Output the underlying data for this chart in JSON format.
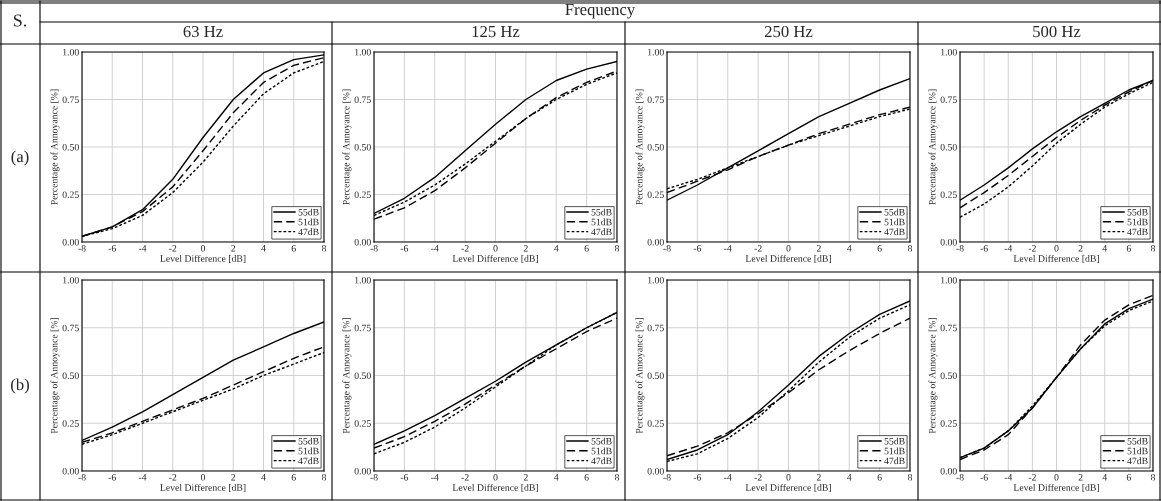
{
  "chart_data": [
    {
      "type": "line",
      "title": "63 Hz",
      "annotations": [
        "S.",
        "Frequency",
        "(a)"
      ],
      "xlabel": "Level Difference [dB]",
      "ylabel": "Percentage of Annoyance [%]",
      "x": [
        -8,
        -6,
        -4,
        -2,
        0,
        2,
        4,
        6,
        8
      ],
      "xlim": [
        -8,
        8
      ],
      "xticks": [
        -8,
        -6,
        -4,
        -2,
        0,
        2,
        4,
        6,
        8
      ],
      "ylim": [
        0,
        1
      ],
      "yticks": [
        {
          "value": 0,
          "label": "0.00"
        },
        {
          "value": 0.25,
          "label": "0.25"
        },
        {
          "value": 0.5,
          "label": "0.50"
        },
        {
          "value": 0.75,
          "label": "0.75"
        },
        {
          "value": 1,
          "label": "1.00"
        }
      ],
      "grid": true,
      "legend": "bottom right",
      "series": [
        {
          "name": "55dB",
          "color": "#000000",
          "line_style": "solid",
          "values": [
            0.03,
            0.08,
            0.17,
            0.33,
            0.55,
            0.75,
            0.89,
            0.96,
            0.985
          ]
        },
        {
          "name": "51dB",
          "color": "#000000",
          "line_style": "dashed",
          "values": [
            0.03,
            0.08,
            0.16,
            0.29,
            0.48,
            0.68,
            0.84,
            0.93,
            0.97
          ]
        },
        {
          "name": "47dB",
          "color": "#000000",
          "line_style": "dotted",
          "values": [
            0.03,
            0.07,
            0.14,
            0.26,
            0.42,
            0.61,
            0.78,
            0.89,
            0.95
          ]
        }
      ]
    },
    {
      "type": "line",
      "title": "125 Hz",
      "xlabel": "Level Difference [dB]",
      "ylabel": "Percentage of Annoyance [%]",
      "x": [
        -8,
        -6,
        -4,
        -2,
        0,
        2,
        4,
        6,
        8
      ],
      "xlim": [
        -8,
        8
      ],
      "xticks": [
        -8,
        -6,
        -4,
        -2,
        0,
        2,
        4,
        6,
        8
      ],
      "ylim": [
        0,
        1
      ],
      "yticks": [
        {
          "value": 0,
          "label": "0.00"
        },
        {
          "value": 0.25,
          "label": "0.25"
        },
        {
          "value": 0.5,
          "label": "0.50"
        },
        {
          "value": 0.75,
          "label": "0.75"
        },
        {
          "value": 1,
          "label": "1.00"
        }
      ],
      "grid": true,
      "legend": "bottom right",
      "series": [
        {
          "name": "55dB",
          "color": "#000000",
          "line_style": "solid",
          "values": [
            0.15,
            0.23,
            0.34,
            0.48,
            0.62,
            0.75,
            0.85,
            0.91,
            0.95
          ]
        },
        {
          "name": "51dB",
          "color": "#000000",
          "line_style": "dashed",
          "values": [
            0.12,
            0.18,
            0.27,
            0.39,
            0.52,
            0.65,
            0.76,
            0.84,
            0.9
          ]
        },
        {
          "name": "47dB",
          "color": "#000000",
          "line_style": "dotted",
          "values": [
            0.14,
            0.21,
            0.3,
            0.41,
            0.53,
            0.65,
            0.75,
            0.83,
            0.89
          ]
        }
      ]
    },
    {
      "type": "line",
      "title": "250 Hz",
      "xlabel": "Level Difference [dB]",
      "ylabel": "Percentage of Annoyance [%]",
      "x": [
        -8,
        -6,
        -4,
        -2,
        0,
        2,
        4,
        6,
        8
      ],
      "xlim": [
        -8,
        8
      ],
      "xticks": [
        -8,
        -6,
        -4,
        -2,
        0,
        2,
        4,
        6,
        8
      ],
      "ylim": [
        0,
        1
      ],
      "yticks": [
        {
          "value": 0,
          "label": "0.00"
        },
        {
          "value": 0.25,
          "label": "0.25"
        },
        {
          "value": 0.5,
          "label": "0.50"
        },
        {
          "value": 0.75,
          "label": "0.75"
        },
        {
          "value": 1,
          "label": "1.00"
        }
      ],
      "grid": true,
      "legend": "bottom right",
      "series": [
        {
          "name": "55dB",
          "color": "#000000",
          "line_style": "solid",
          "values": [
            0.22,
            0.3,
            0.39,
            0.48,
            0.57,
            0.66,
            0.73,
            0.8,
            0.86
          ]
        },
        {
          "name": "51dB",
          "color": "#000000",
          "line_style": "dashed",
          "values": [
            0.26,
            0.32,
            0.38,
            0.45,
            0.51,
            0.57,
            0.62,
            0.67,
            0.71
          ]
        },
        {
          "name": "47dB",
          "color": "#000000",
          "line_style": "dotted",
          "values": [
            0.28,
            0.33,
            0.39,
            0.45,
            0.51,
            0.56,
            0.61,
            0.66,
            0.7
          ]
        }
      ]
    },
    {
      "type": "line",
      "title": "500 Hz",
      "xlabel": "Level Difference [dB]",
      "ylabel": "Percentage of Annoyance [%]",
      "x": [
        -8,
        -6,
        -4,
        -2,
        0,
        2,
        4,
        6,
        8
      ],
      "xlim": [
        -8,
        8
      ],
      "xticks": [
        -8,
        -6,
        -4,
        -2,
        0,
        2,
        4,
        6,
        8
      ],
      "ylim": [
        0,
        1
      ],
      "yticks": [
        {
          "value": 0,
          "label": "0.00"
        },
        {
          "value": 0.25,
          "label": "0.25"
        },
        {
          "value": 0.5,
          "label": "0.50"
        },
        {
          "value": 0.75,
          "label": "0.75"
        },
        {
          "value": 1,
          "label": "1.00"
        }
      ],
      "grid": true,
      "legend": "bottom right",
      "series": [
        {
          "name": "55dB",
          "color": "#000000",
          "line_style": "solid",
          "values": [
            0.22,
            0.3,
            0.39,
            0.49,
            0.58,
            0.66,
            0.73,
            0.8,
            0.85
          ]
        },
        {
          "name": "51dB",
          "color": "#000000",
          "line_style": "dashed",
          "values": [
            0.18,
            0.26,
            0.35,
            0.45,
            0.55,
            0.64,
            0.72,
            0.79,
            0.85
          ]
        },
        {
          "name": "47dB",
          "color": "#000000",
          "line_style": "dotted",
          "values": [
            0.13,
            0.2,
            0.29,
            0.4,
            0.52,
            0.62,
            0.71,
            0.78,
            0.84
          ]
        }
      ]
    },
    {
      "type": "line",
      "annotations": [
        "(b)"
      ],
      "xlabel": "Level Difference [dB]",
      "ylabel": "Percentage of Annoyance [%]",
      "x": [
        -8,
        -6,
        -4,
        -2,
        0,
        2,
        4,
        6,
        8
      ],
      "xlim": [
        -8,
        8
      ],
      "xticks": [
        -8,
        -6,
        -4,
        -2,
        0,
        2,
        4,
        6,
        8
      ],
      "ylim": [
        0,
        1
      ],
      "yticks": [
        {
          "value": 0,
          "label": "0.00"
        },
        {
          "value": 0.25,
          "label": "0.25"
        },
        {
          "value": 0.5,
          "label": "0.50"
        },
        {
          "value": 0.75,
          "label": "0.75"
        },
        {
          "value": 1,
          "label": "1.00"
        }
      ],
      "grid": true,
      "legend": "bottom right",
      "series": [
        {
          "name": "55dB",
          "color": "#000000",
          "line_style": "solid",
          "values": [
            0.16,
            0.23,
            0.31,
            0.4,
            0.49,
            0.58,
            0.65,
            0.72,
            0.78
          ]
        },
        {
          "name": "51dB",
          "color": "#000000",
          "line_style": "dashed",
          "values": [
            0.15,
            0.2,
            0.26,
            0.32,
            0.38,
            0.45,
            0.52,
            0.59,
            0.65
          ]
        },
        {
          "name": "47dB",
          "color": "#000000",
          "line_style": "dotted",
          "values": [
            0.14,
            0.19,
            0.25,
            0.31,
            0.37,
            0.43,
            0.5,
            0.56,
            0.62
          ]
        }
      ]
    },
    {
      "type": "line",
      "xlabel": "Level Difference [dB]",
      "ylabel": "Percentage of Annoyance [%]",
      "x": [
        -8,
        -6,
        -4,
        -2,
        0,
        2,
        4,
        6,
        8
      ],
      "xlim": [
        -8,
        8
      ],
      "xticks": [
        -8,
        -6,
        -4,
        -2,
        0,
        2,
        4,
        6,
        8
      ],
      "ylim": [
        0,
        1
      ],
      "yticks": [
        {
          "value": 0,
          "label": "0.00"
        },
        {
          "value": 0.25,
          "label": "0.25"
        },
        {
          "value": 0.5,
          "label": "0.50"
        },
        {
          "value": 0.75,
          "label": "0.75"
        },
        {
          "value": 1,
          "label": "1.00"
        }
      ],
      "grid": true,
      "legend": "bottom right",
      "series": [
        {
          "name": "55dB",
          "color": "#000000",
          "line_style": "solid",
          "values": [
            0.14,
            0.21,
            0.29,
            0.38,
            0.47,
            0.57,
            0.66,
            0.75,
            0.83
          ]
        },
        {
          "name": "51dB",
          "color": "#000000",
          "line_style": "dashed",
          "values": [
            0.12,
            0.18,
            0.26,
            0.35,
            0.45,
            0.55,
            0.64,
            0.73,
            0.8
          ]
        },
        {
          "name": "47dB",
          "color": "#000000",
          "line_style": "dotted",
          "values": [
            0.09,
            0.15,
            0.23,
            0.33,
            0.44,
            0.55,
            0.66,
            0.75,
            0.83
          ]
        }
      ]
    },
    {
      "type": "line",
      "xlabel": "Level Difference [dB]",
      "ylabel": "Percentage of Annoyance [%]",
      "x": [
        -8,
        -6,
        -4,
        -2,
        0,
        2,
        4,
        6,
        8
      ],
      "xlim": [
        -8,
        8
      ],
      "xticks": [
        -8,
        -6,
        -4,
        -2,
        0,
        2,
        4,
        6,
        8
      ],
      "ylim": [
        0,
        1
      ],
      "yticks": [
        {
          "value": 0,
          "label": "0.00"
        },
        {
          "value": 0.25,
          "label": "0.25"
        },
        {
          "value": 0.5,
          "label": "0.50"
        },
        {
          "value": 0.75,
          "label": "0.75"
        },
        {
          "value": 1,
          "label": "1.00"
        }
      ],
      "grid": true,
      "legend": "bottom right",
      "series": [
        {
          "name": "55dB",
          "color": "#000000",
          "line_style": "solid",
          "values": [
            0.06,
            0.11,
            0.19,
            0.31,
            0.45,
            0.6,
            0.72,
            0.82,
            0.89
          ]
        },
        {
          "name": "51dB",
          "color": "#000000",
          "line_style": "dashed",
          "values": [
            0.08,
            0.13,
            0.2,
            0.3,
            0.41,
            0.53,
            0.63,
            0.72,
            0.8
          ]
        },
        {
          "name": "47dB",
          "color": "#000000",
          "line_style": "dotted",
          "values": [
            0.05,
            0.09,
            0.17,
            0.28,
            0.42,
            0.57,
            0.7,
            0.8,
            0.87
          ]
        }
      ]
    },
    {
      "type": "line",
      "xlabel": "Level Difference [dB]",
      "ylabel": "Percentage of Annoyance [%]",
      "x": [
        -8,
        -6,
        -4,
        -2,
        0,
        2,
        4,
        6,
        8
      ],
      "xlim": [
        -8,
        8
      ],
      "xticks": [
        -8,
        -6,
        -4,
        -2,
        0,
        2,
        4,
        6,
        8
      ],
      "ylim": [
        0,
        1
      ],
      "yticks": [
        {
          "value": 0,
          "label": "0.00"
        },
        {
          "value": 0.25,
          "label": "0.25"
        },
        {
          "value": 0.5,
          "label": "0.50"
        },
        {
          "value": 0.75,
          "label": "0.75"
        },
        {
          "value": 1,
          "label": "1.00"
        }
      ],
      "grid": true,
      "legend": "bottom right",
      "series": [
        {
          "name": "55dB",
          "color": "#000000",
          "line_style": "solid",
          "values": [
            0.07,
            0.12,
            0.21,
            0.33,
            0.49,
            0.64,
            0.77,
            0.85,
            0.9
          ]
        },
        {
          "name": "51dB",
          "color": "#000000",
          "line_style": "dashed",
          "values": [
            0.06,
            0.11,
            0.19,
            0.33,
            0.49,
            0.66,
            0.79,
            0.87,
            0.92
          ]
        },
        {
          "name": "47dB",
          "color": "#000000",
          "line_style": "dotted",
          "values": [
            0.07,
            0.12,
            0.21,
            0.34,
            0.49,
            0.64,
            0.76,
            0.84,
            0.89
          ]
        }
      ]
    }
  ]
}
